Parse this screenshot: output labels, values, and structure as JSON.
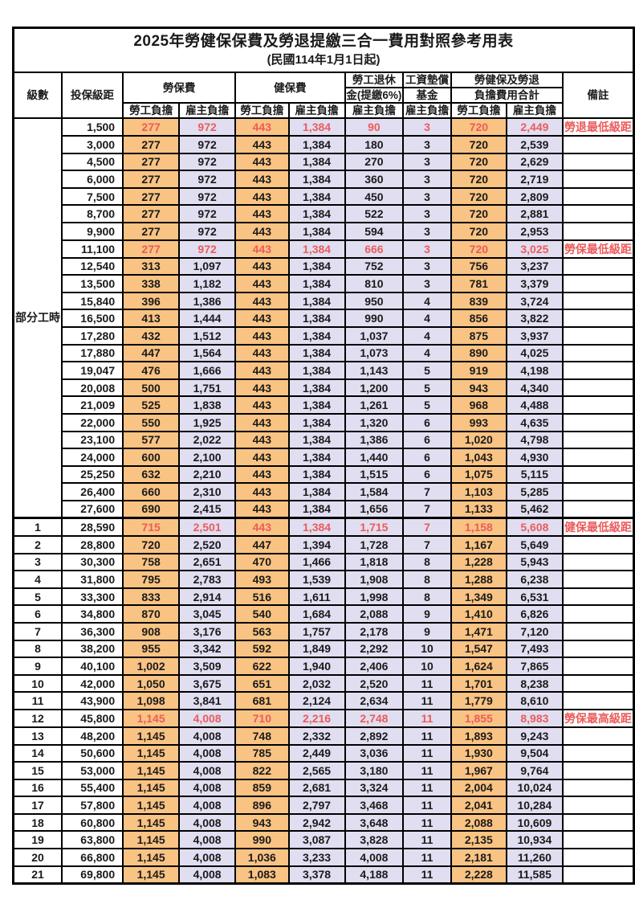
{
  "title": "2025年勞健保保費及勞退提繳三合一費用對照參考用表",
  "subtitle": "(民國114年1月1日起)",
  "columns": {
    "level": "級數",
    "bracket": "投保級距",
    "labor": "勞保費",
    "health": "健保費",
    "pension_l1": "勞工退休",
    "pension_l2": "金(提繳6%)",
    "fund_l1": "工資墊償",
    "fund_l2": "基金",
    "total_l1": "勞健保及勞退",
    "total_l2": "負擔費用合計",
    "note": "備註",
    "employee_share": "勞工負擔",
    "employer_share": "雇主負擔"
  },
  "part_time": {
    "label": "部分工時",
    "rowspan": 23
  },
  "colors": {
    "employee_bg": "#F9C383",
    "employer_bg": "#E0DEF0",
    "highlight_text": "#EC5B5B",
    "border": "#000000"
  },
  "notes_legend": {
    "pension_min": "勞退最低級距",
    "labor_min": "勞保最低級距",
    "health_min": "健保最低級距",
    "labor_max": "勞保最高級距"
  },
  "rows": [
    {
      "level": "",
      "bracket": "1,500",
      "labor_emp": "277",
      "labor_er": "972",
      "health_emp": "443",
      "health_er": "1,384",
      "pension_er": "90",
      "fund_er": "3",
      "total_emp": "720",
      "total_er": "2,449",
      "note": "勞退最低級距",
      "hl": true
    },
    {
      "level": "",
      "bracket": "3,000",
      "labor_emp": "277",
      "labor_er": "972",
      "health_emp": "443",
      "health_er": "1,384",
      "pension_er": "180",
      "fund_er": "3",
      "total_emp": "720",
      "total_er": "2,539",
      "note": "",
      "hl": false
    },
    {
      "level": "",
      "bracket": "4,500",
      "labor_emp": "277",
      "labor_er": "972",
      "health_emp": "443",
      "health_er": "1,384",
      "pension_er": "270",
      "fund_er": "3",
      "total_emp": "720",
      "total_er": "2,629",
      "note": "",
      "hl": false
    },
    {
      "level": "",
      "bracket": "6,000",
      "labor_emp": "277",
      "labor_er": "972",
      "health_emp": "443",
      "health_er": "1,384",
      "pension_er": "360",
      "fund_er": "3",
      "total_emp": "720",
      "total_er": "2,719",
      "note": "",
      "hl": false
    },
    {
      "level": "",
      "bracket": "7,500",
      "labor_emp": "277",
      "labor_er": "972",
      "health_emp": "443",
      "health_er": "1,384",
      "pension_er": "450",
      "fund_er": "3",
      "total_emp": "720",
      "total_er": "2,809",
      "note": "",
      "hl": false
    },
    {
      "level": "",
      "bracket": "8,700",
      "labor_emp": "277",
      "labor_er": "972",
      "health_emp": "443",
      "health_er": "1,384",
      "pension_er": "522",
      "fund_er": "3",
      "total_emp": "720",
      "total_er": "2,881",
      "note": "",
      "hl": false
    },
    {
      "level": "",
      "bracket": "9,900",
      "labor_emp": "277",
      "labor_er": "972",
      "health_emp": "443",
      "health_er": "1,384",
      "pension_er": "594",
      "fund_er": "3",
      "total_emp": "720",
      "total_er": "2,953",
      "note": "",
      "hl": false
    },
    {
      "level": "",
      "bracket": "11,100",
      "labor_emp": "277",
      "labor_er": "972",
      "health_emp": "443",
      "health_er": "1,384",
      "pension_er": "666",
      "fund_er": "3",
      "total_emp": "720",
      "total_er": "3,025",
      "note": "勞保最低級距",
      "hl": true
    },
    {
      "level": "",
      "bracket": "12,540",
      "labor_emp": "313",
      "labor_er": "1,097",
      "health_emp": "443",
      "health_er": "1,384",
      "pension_er": "752",
      "fund_er": "3",
      "total_emp": "756",
      "total_er": "3,237",
      "note": "",
      "hl": false
    },
    {
      "level": "",
      "bracket": "13,500",
      "labor_emp": "338",
      "labor_er": "1,182",
      "health_emp": "443",
      "health_er": "1,384",
      "pension_er": "810",
      "fund_er": "3",
      "total_emp": "781",
      "total_er": "3,379",
      "note": "",
      "hl": false
    },
    {
      "level": "",
      "bracket": "15,840",
      "labor_emp": "396",
      "labor_er": "1,386",
      "health_emp": "443",
      "health_er": "1,384",
      "pension_er": "950",
      "fund_er": "4",
      "total_emp": "839",
      "total_er": "3,724",
      "note": "",
      "hl": false
    },
    {
      "level": "",
      "bracket": "16,500",
      "labor_emp": "413",
      "labor_er": "1,444",
      "health_emp": "443",
      "health_er": "1,384",
      "pension_er": "990",
      "fund_er": "4",
      "total_emp": "856",
      "total_er": "3,822",
      "note": "",
      "hl": false
    },
    {
      "level": "",
      "bracket": "17,280",
      "labor_emp": "432",
      "labor_er": "1,512",
      "health_emp": "443",
      "health_er": "1,384",
      "pension_er": "1,037",
      "fund_er": "4",
      "total_emp": "875",
      "total_er": "3,937",
      "note": "",
      "hl": false
    },
    {
      "level": "",
      "bracket": "17,880",
      "labor_emp": "447",
      "labor_er": "1,564",
      "health_emp": "443",
      "health_er": "1,384",
      "pension_er": "1,073",
      "fund_er": "4",
      "total_emp": "890",
      "total_er": "4,025",
      "note": "",
      "hl": false
    },
    {
      "level": "",
      "bracket": "19,047",
      "labor_emp": "476",
      "labor_er": "1,666",
      "health_emp": "443",
      "health_er": "1,384",
      "pension_er": "1,143",
      "fund_er": "5",
      "total_emp": "919",
      "total_er": "4,198",
      "note": "",
      "hl": false
    },
    {
      "level": "",
      "bracket": "20,008",
      "labor_emp": "500",
      "labor_er": "1,751",
      "health_emp": "443",
      "health_er": "1,384",
      "pension_er": "1,200",
      "fund_er": "5",
      "total_emp": "943",
      "total_er": "4,340",
      "note": "",
      "hl": false
    },
    {
      "level": "",
      "bracket": "21,009",
      "labor_emp": "525",
      "labor_er": "1,838",
      "health_emp": "443",
      "health_er": "1,384",
      "pension_er": "1,261",
      "fund_er": "5",
      "total_emp": "968",
      "total_er": "4,488",
      "note": "",
      "hl": false
    },
    {
      "level": "",
      "bracket": "22,000",
      "labor_emp": "550",
      "labor_er": "1,925",
      "health_emp": "443",
      "health_er": "1,384",
      "pension_er": "1,320",
      "fund_er": "6",
      "total_emp": "993",
      "total_er": "4,635",
      "note": "",
      "hl": false
    },
    {
      "level": "",
      "bracket": "23,100",
      "labor_emp": "577",
      "labor_er": "2,022",
      "health_emp": "443",
      "health_er": "1,384",
      "pension_er": "1,386",
      "fund_er": "6",
      "total_emp": "1,020",
      "total_er": "4,798",
      "note": "",
      "hl": false
    },
    {
      "level": "",
      "bracket": "24,000",
      "labor_emp": "600",
      "labor_er": "2,100",
      "health_emp": "443",
      "health_er": "1,384",
      "pension_er": "1,440",
      "fund_er": "6",
      "total_emp": "1,043",
      "total_er": "4,930",
      "note": "",
      "hl": false
    },
    {
      "level": "",
      "bracket": "25,250",
      "labor_emp": "632",
      "labor_er": "2,210",
      "health_emp": "443",
      "health_er": "1,384",
      "pension_er": "1,515",
      "fund_er": "6",
      "total_emp": "1,075",
      "total_er": "5,115",
      "note": "",
      "hl": false
    },
    {
      "level": "",
      "bracket": "26,400",
      "labor_emp": "660",
      "labor_er": "2,310",
      "health_emp": "443",
      "health_er": "1,384",
      "pension_er": "1,584",
      "fund_er": "7",
      "total_emp": "1,103",
      "total_er": "5,285",
      "note": "",
      "hl": false
    },
    {
      "level": "",
      "bracket": "27,600",
      "labor_emp": "690",
      "labor_er": "2,415",
      "health_emp": "443",
      "health_er": "1,384",
      "pension_er": "1,656",
      "fund_er": "7",
      "total_emp": "1,133",
      "total_er": "5,462",
      "note": "",
      "hl": false
    },
    {
      "level": "1",
      "bracket": "28,590",
      "labor_emp": "715",
      "labor_er": "2,501",
      "health_emp": "443",
      "health_er": "1,384",
      "pension_er": "1,715",
      "fund_er": "7",
      "total_emp": "1,158",
      "total_er": "5,608",
      "note": "健保最低級距",
      "hl": true
    },
    {
      "level": "2",
      "bracket": "28,800",
      "labor_emp": "720",
      "labor_er": "2,520",
      "health_emp": "447",
      "health_er": "1,394",
      "pension_er": "1,728",
      "fund_er": "7",
      "total_emp": "1,167",
      "total_er": "5,649",
      "note": "",
      "hl": false
    },
    {
      "level": "3",
      "bracket": "30,300",
      "labor_emp": "758",
      "labor_er": "2,651",
      "health_emp": "470",
      "health_er": "1,466",
      "pension_er": "1,818",
      "fund_er": "8",
      "total_emp": "1,228",
      "total_er": "5,943",
      "note": "",
      "hl": false
    },
    {
      "level": "4",
      "bracket": "31,800",
      "labor_emp": "795",
      "labor_er": "2,783",
      "health_emp": "493",
      "health_er": "1,539",
      "pension_er": "1,908",
      "fund_er": "8",
      "total_emp": "1,288",
      "total_er": "6,238",
      "note": "",
      "hl": false
    },
    {
      "level": "5",
      "bracket": "33,300",
      "labor_emp": "833",
      "labor_er": "2,914",
      "health_emp": "516",
      "health_er": "1,611",
      "pension_er": "1,998",
      "fund_er": "8",
      "total_emp": "1,349",
      "total_er": "6,531",
      "note": "",
      "hl": false
    },
    {
      "level": "6",
      "bracket": "34,800",
      "labor_emp": "870",
      "labor_er": "3,045",
      "health_emp": "540",
      "health_er": "1,684",
      "pension_er": "2,088",
      "fund_er": "9",
      "total_emp": "1,410",
      "total_er": "6,826",
      "note": "",
      "hl": false
    },
    {
      "level": "7",
      "bracket": "36,300",
      "labor_emp": "908",
      "labor_er": "3,176",
      "health_emp": "563",
      "health_er": "1,757",
      "pension_er": "2,178",
      "fund_er": "9",
      "total_emp": "1,471",
      "total_er": "7,120",
      "note": "",
      "hl": false
    },
    {
      "level": "8",
      "bracket": "38,200",
      "labor_emp": "955",
      "labor_er": "3,342",
      "health_emp": "592",
      "health_er": "1,849",
      "pension_er": "2,292",
      "fund_er": "10",
      "total_emp": "1,547",
      "total_er": "7,493",
      "note": "",
      "hl": false
    },
    {
      "level": "9",
      "bracket": "40,100",
      "labor_emp": "1,002",
      "labor_er": "3,509",
      "health_emp": "622",
      "health_er": "1,940",
      "pension_er": "2,406",
      "fund_er": "10",
      "total_emp": "1,624",
      "total_er": "7,865",
      "note": "",
      "hl": false
    },
    {
      "level": "10",
      "bracket": "42,000",
      "labor_emp": "1,050",
      "labor_er": "3,675",
      "health_emp": "651",
      "health_er": "2,032",
      "pension_er": "2,520",
      "fund_er": "11",
      "total_emp": "1,701",
      "total_er": "8,238",
      "note": "",
      "hl": false
    },
    {
      "level": "11",
      "bracket": "43,900",
      "labor_emp": "1,098",
      "labor_er": "3,841",
      "health_emp": "681",
      "health_er": "2,124",
      "pension_er": "2,634",
      "fund_er": "11",
      "total_emp": "1,779",
      "total_er": "8,610",
      "note": "",
      "hl": false
    },
    {
      "level": "12",
      "bracket": "45,800",
      "labor_emp": "1,145",
      "labor_er": "4,008",
      "health_emp": "710",
      "health_er": "2,216",
      "pension_er": "2,748",
      "fund_er": "11",
      "total_emp": "1,855",
      "total_er": "8,983",
      "note": "勞保最高級距",
      "hl": true
    },
    {
      "level": "13",
      "bracket": "48,200",
      "labor_emp": "1,145",
      "labor_er": "4,008",
      "health_emp": "748",
      "health_er": "2,332",
      "pension_er": "2,892",
      "fund_er": "11",
      "total_emp": "1,893",
      "total_er": "9,243",
      "note": "",
      "hl": false
    },
    {
      "level": "14",
      "bracket": "50,600",
      "labor_emp": "1,145",
      "labor_er": "4,008",
      "health_emp": "785",
      "health_er": "2,449",
      "pension_er": "3,036",
      "fund_er": "11",
      "total_emp": "1,930",
      "total_er": "9,504",
      "note": "",
      "hl": false
    },
    {
      "level": "15",
      "bracket": "53,000",
      "labor_emp": "1,145",
      "labor_er": "4,008",
      "health_emp": "822",
      "health_er": "2,565",
      "pension_er": "3,180",
      "fund_er": "11",
      "total_emp": "1,967",
      "total_er": "9,764",
      "note": "",
      "hl": false
    },
    {
      "level": "16",
      "bracket": "55,400",
      "labor_emp": "1,145",
      "labor_er": "4,008",
      "health_emp": "859",
      "health_er": "2,681",
      "pension_er": "3,324",
      "fund_er": "11",
      "total_emp": "2,004",
      "total_er": "10,024",
      "note": "",
      "hl": false
    },
    {
      "level": "17",
      "bracket": "57,800",
      "labor_emp": "1,145",
      "labor_er": "4,008",
      "health_emp": "896",
      "health_er": "2,797",
      "pension_er": "3,468",
      "fund_er": "11",
      "total_emp": "2,041",
      "total_er": "10,284",
      "note": "",
      "hl": false
    },
    {
      "level": "18",
      "bracket": "60,800",
      "labor_emp": "1,145",
      "labor_er": "4,008",
      "health_emp": "943",
      "health_er": "2,942",
      "pension_er": "3,648",
      "fund_er": "11",
      "total_emp": "2,088",
      "total_er": "10,609",
      "note": "",
      "hl": false
    },
    {
      "level": "19",
      "bracket": "63,800",
      "labor_emp": "1,145",
      "labor_er": "4,008",
      "health_emp": "990",
      "health_er": "3,087",
      "pension_er": "3,828",
      "fund_er": "11",
      "total_emp": "2,135",
      "total_er": "10,934",
      "note": "",
      "hl": false
    },
    {
      "level": "20",
      "bracket": "66,800",
      "labor_emp": "1,145",
      "labor_er": "4,008",
      "health_emp": "1,036",
      "health_er": "3,233",
      "pension_er": "4,008",
      "fund_er": "11",
      "total_emp": "2,181",
      "total_er": "11,260",
      "note": "",
      "hl": false
    },
    {
      "level": "21",
      "bracket": "69,800",
      "labor_emp": "1,145",
      "labor_er": "4,008",
      "health_emp": "1,083",
      "health_er": "3,378",
      "pension_er": "4,188",
      "fund_er": "11",
      "total_emp": "2,228",
      "total_er": "11,585",
      "note": "",
      "hl": false
    }
  ]
}
